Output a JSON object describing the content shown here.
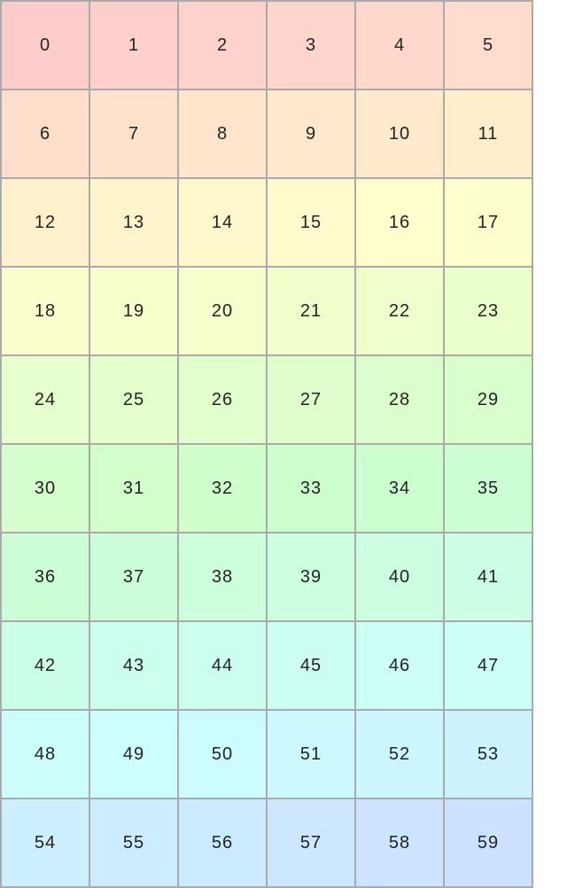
{
  "grid": {
    "columns": 6,
    "cells": [
      "0",
      "1",
      "2",
      "3",
      "4",
      "5",
      "6",
      "7",
      "8",
      "9",
      "10",
      "11",
      "12",
      "13",
      "14",
      "15",
      "16",
      "17",
      "18",
      "19",
      "20",
      "21",
      "22",
      "23",
      "24",
      "25",
      "26",
      "27",
      "28",
      "29",
      "30",
      "31",
      "32",
      "33",
      "34",
      "35",
      "36",
      "37",
      "38",
      "39",
      "40",
      "41",
      "42",
      "43",
      "44",
      "45",
      "46",
      "47",
      "48",
      "49",
      "50",
      "51",
      "52",
      "53",
      "54",
      "55",
      "56",
      "57",
      "58",
      "59"
    ],
    "colors": {
      "first": "#ffcccc",
      "last": "#cce0ff",
      "border": "#aaaaaa"
    }
  }
}
